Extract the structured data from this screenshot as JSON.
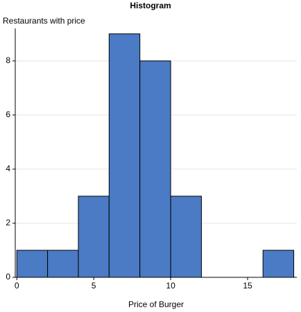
{
  "chart_data": {
    "type": "histogram",
    "title": "Histogram",
    "ylabel": "Restaurants with price",
    "xlabel": "Price of Burger",
    "bins": [
      0,
      2,
      4,
      6,
      8,
      10,
      12,
      14,
      16,
      18
    ],
    "values": [
      1,
      1,
      3,
      9,
      8,
      3,
      0,
      0,
      1
    ],
    "color": "#4a7bc4",
    "edgecolor": "#000000",
    "xlim": [
      -0.1,
      18.2
    ],
    "xticks": [
      0,
      5,
      10,
      15
    ],
    "ylim": [
      0,
      9.2
    ],
    "yticks": [
      0,
      2,
      4,
      6,
      8
    ],
    "grid": true
  }
}
